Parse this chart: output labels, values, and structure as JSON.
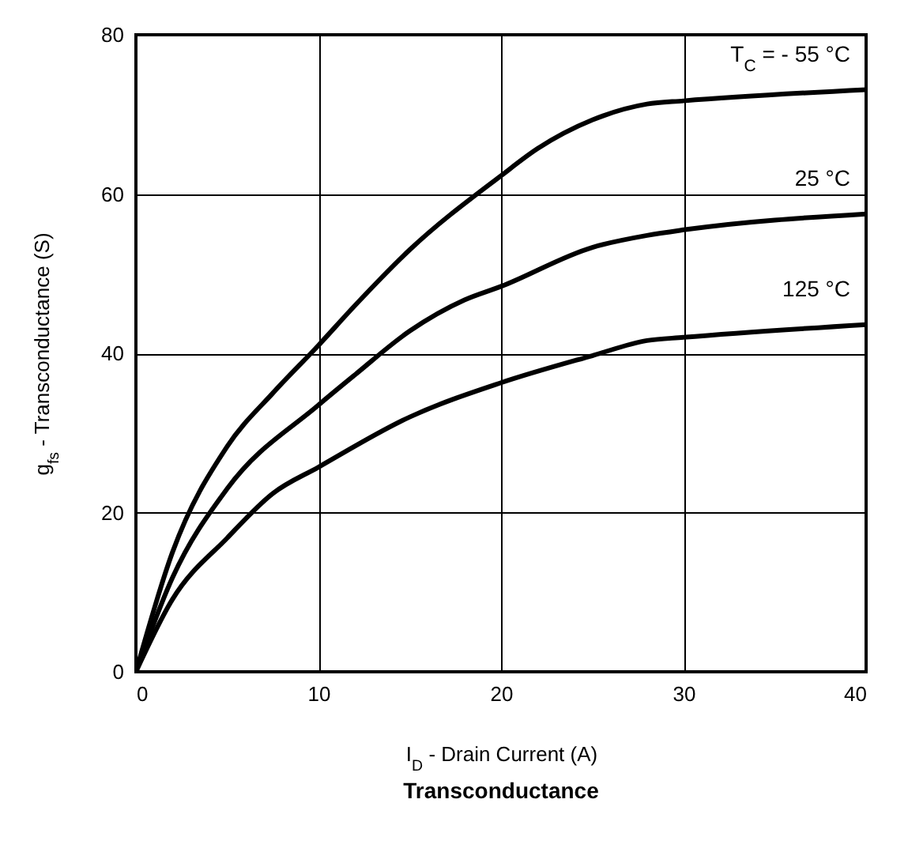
{
  "chart_data": {
    "type": "line",
    "title": "Transconductance",
    "xlabel": "I$_{D}$ - Drain Current (A)",
    "ylabel": "g$_{fs}$ - Transconductance (S)",
    "xlim": [
      0,
      40
    ],
    "xticks": [
      0,
      10,
      20,
      30,
      40
    ],
    "ylim": [
      0,
      80
    ],
    "yticks": [
      0,
      20,
      40,
      60,
      80
    ],
    "grid": true,
    "legend": false,
    "marker": "none",
    "line_style": "solid",
    "series": [
      {
        "name": "T$_{C}$ = - 55 °C",
        "color": "#000000",
        "x": [
          0,
          2,
          5,
          7.5,
          10,
          12,
          15,
          20,
          22,
          25,
          28,
          30,
          40
        ],
        "values": [
          0,
          15,
          28.3,
          35,
          41,
          46,
          53,
          62.3,
          65.7,
          69.3,
          71.3,
          71.7,
          73.1
        ]
      },
      {
        "name": "25 °C",
        "color": "#000000",
        "x": [
          0,
          2,
          5,
          10,
          12,
          15,
          18,
          20,
          25,
          28,
          30,
          40
        ],
        "values": [
          0,
          11.8,
          23,
          33.5,
          37.3,
          42.8,
          46.7,
          48.4,
          53.3,
          54.8,
          55.5,
          57.5
        ]
      },
      {
        "name": "125 °C",
        "color": "#000000",
        "x": [
          0,
          2,
          5,
          7.5,
          10,
          15,
          20,
          25,
          28,
          30,
          40
        ],
        "values": [
          0,
          9.1,
          16.8,
          22.4,
          25.7,
          32,
          36.3,
          39.7,
          41.6,
          42,
          43.6
        ]
      }
    ]
  }
}
